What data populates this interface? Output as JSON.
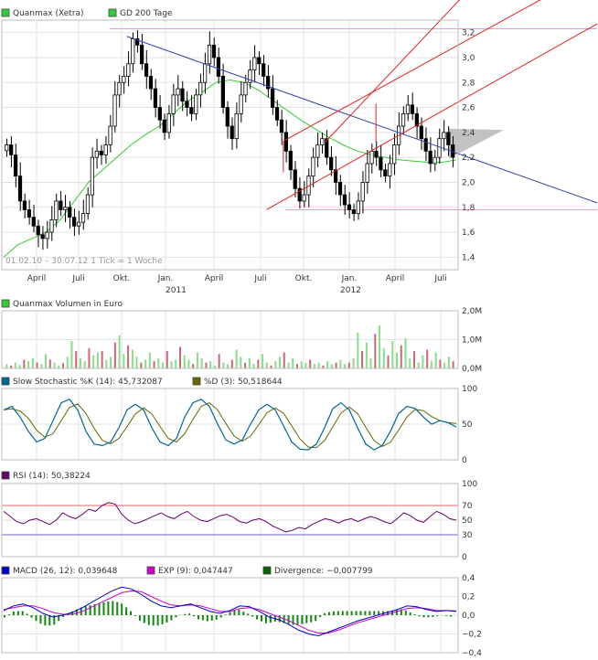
{
  "chart_data": [
    {
      "type": "candlestick",
      "legend": [
        {
          "label": "Quanmax (Xetra)",
          "color": "#33cc33"
        },
        {
          "label": "GD 200 Tage",
          "color": "#33cc33"
        }
      ],
      "y_ticks": [
        "3,2",
        "3,0",
        "2,8",
        "2,6",
        "2,4",
        "2,2",
        "2,0",
        "1,8",
        "1,6",
        "1,4"
      ],
      "y_values": [
        3.2,
        3.0,
        2.8,
        2.6,
        2.4,
        2.2,
        2.0,
        1.8,
        1.6,
        1.4
      ],
      "ylim": [
        1.3,
        3.3
      ],
      "x_ticks": [
        "April",
        "Juli",
        "Okt.",
        "Jan.",
        "April",
        "Juli",
        "Okt.",
        "Jan.",
        "April",
        "Juli"
      ],
      "year_labels": [
        {
          "label": "2011",
          "under": 3
        },
        {
          "label": "2012",
          "under": 7
        }
      ],
      "period_note": "01.02.10 – 30.07.12   1 Tick = 1 Woche",
      "closes": [
        2.3,
        2.22,
        2.05,
        1.85,
        1.78,
        1.72,
        1.65,
        1.58,
        1.55,
        1.6,
        1.7,
        1.85,
        1.78,
        1.8,
        1.72,
        1.65,
        1.68,
        1.75,
        1.9,
        2.2,
        2.25,
        2.22,
        2.3,
        2.45,
        2.7,
        2.8,
        2.85,
        2.95,
        3.15,
        3.1,
        2.95,
        2.85,
        2.75,
        2.6,
        2.5,
        2.4,
        2.55,
        2.7,
        2.75,
        2.65,
        2.6,
        2.55,
        2.7,
        2.8,
        2.95,
        3.1,
        3.0,
        2.85,
        2.6,
        2.45,
        2.35,
        2.55,
        2.7,
        2.8,
        2.9,
        3.0,
        2.95,
        2.85,
        2.75,
        2.6,
        2.5,
        2.4,
        2.25,
        2.1,
        1.95,
        1.85,
        1.9,
        2.05,
        2.2,
        2.3,
        2.35,
        2.2,
        2.1,
        2.0,
        1.9,
        1.82,
        1.78,
        1.75,
        1.85,
        2.0,
        2.15,
        2.25,
        2.2,
        2.1,
        2.05,
        2.15,
        2.3,
        2.45,
        2.55,
        2.62,
        2.55,
        2.45,
        2.35,
        2.25,
        2.15,
        2.2,
        2.35,
        2.4,
        2.3,
        2.2
      ],
      "ma200": [
        1.4,
        1.5,
        1.55,
        1.6,
        1.7,
        1.85,
        2.0,
        2.1,
        2.2,
        2.3,
        2.38,
        2.45,
        2.55,
        2.65,
        2.72,
        2.8,
        2.82,
        2.8,
        2.74,
        2.66,
        2.58,
        2.5,
        2.43,
        2.36,
        2.3,
        2.25,
        2.22,
        2.2,
        2.18,
        2.17,
        2.16,
        2.16,
        2.18
      ],
      "resistance_line": {
        "from": [
          0.274,
          3.17
        ],
        "to": [
          1.0,
          2.23
        ]
      },
      "channel_upper": {
        "from": [
          0.617,
          2.33
        ],
        "to": [
          1.0,
          3.1
        ]
      },
      "channel_lower": {
        "from": [
          0.58,
          1.78
        ],
        "to": [
          0.94,
          2.52
        ]
      },
      "channel_far": {
        "from": [
          0.708,
          2.32
        ],
        "to": [
          1.0,
          3.45
        ]
      },
      "support_level": 1.78,
      "top_level": 3.23
    },
    {
      "type": "bar",
      "legend": [
        {
          "label": "Quanmax Volumen in Euro",
          "color": "#33cc33"
        }
      ],
      "y_ticks": [
        "2,0M",
        "1,0M",
        "0,0M"
      ],
      "ylim": [
        0,
        2.0
      ],
      "values": [
        0.15,
        0.1,
        0.2,
        0.12,
        0.3,
        0.25,
        0.35,
        0.2,
        0.15,
        0.5,
        0.3,
        0.2,
        0.1,
        0.18,
        0.4,
        0.95,
        0.6,
        0.35,
        0.25,
        0.7,
        0.45,
        0.55,
        0.6,
        0.3,
        0.4,
        0.9,
        1.15,
        0.5,
        0.8,
        0.65,
        0.4,
        0.2,
        0.3,
        0.55,
        0.25,
        0.35,
        0.2,
        0.6,
        0.25,
        0.3,
        0.75,
        0.45,
        0.3,
        0.15,
        0.55,
        0.35,
        0.2,
        0.25,
        0.1,
        0.5,
        0.2,
        0.15,
        0.3,
        0.65,
        0.4,
        0.2,
        0.35,
        0.15,
        0.3,
        0.5,
        0.2,
        0.1,
        0.25,
        0.4,
        0.55,
        0.2,
        0.35,
        0.15,
        0.25,
        0.2,
        0.3,
        0.15,
        0.2,
        0.1,
        0.25,
        0.15,
        0.2,
        0.3,
        0.15,
        0.2,
        0.35,
        1.25,
        0.6,
        0.9,
        0.35,
        1.2,
        1.5,
        0.7,
        0.45,
        0.95,
        0.55,
        0.8,
        1.05,
        0.35,
        0.6,
        0.2,
        0.45,
        0.65,
        0.25,
        0.55,
        0.3,
        0.2,
        0.4,
        0.25
      ]
    },
    {
      "type": "line",
      "legend": [
        {
          "label": "Slow Stochastic %K (14): 45,732087",
          "color": "#006699"
        },
        {
          "label": "%D (3): 50,518644",
          "color": "#666600"
        }
      ],
      "y_ticks": [
        "100",
        "50",
        "0"
      ],
      "ylim": [
        0,
        100
      ],
      "k_values": [
        70,
        75,
        60,
        40,
        25,
        30,
        55,
        80,
        85,
        70,
        40,
        22,
        20,
        25,
        45,
        70,
        78,
        70,
        45,
        25,
        20,
        30,
        60,
        80,
        85,
        75,
        50,
        28,
        22,
        28,
        50,
        70,
        78,
        70,
        48,
        25,
        15,
        14,
        22,
        45,
        72,
        80,
        70,
        45,
        22,
        14,
        20,
        40,
        65,
        75,
        72,
        60,
        50,
        55,
        52,
        46
      ]
    },
    {
      "type": "line",
      "legend": [
        {
          "label": "RSI (14): 50,38224",
          "color": "#660066"
        }
      ],
      "y_ticks": [
        "100",
        "70",
        "50",
        "30",
        "0"
      ],
      "ylim": [
        0,
        100
      ],
      "ref_lines": [
        70,
        30
      ],
      "values": [
        62,
        55,
        48,
        45,
        50,
        52,
        48,
        44,
        50,
        60,
        55,
        52,
        58,
        65,
        62,
        70,
        74,
        72,
        58,
        50,
        45,
        48,
        52,
        56,
        60,
        55,
        52,
        58,
        62,
        55,
        50,
        48,
        52,
        56,
        58,
        54,
        48,
        46,
        50,
        52,
        48,
        42,
        38,
        34,
        36,
        40,
        38,
        44,
        48,
        52,
        50,
        46,
        50,
        52,
        48,
        52,
        55,
        52,
        48,
        45,
        52,
        60,
        56,
        50,
        47,
        55,
        62,
        58,
        52,
        50
      ]
    },
    {
      "type": "line",
      "legend": [
        {
          "label": "MACD (26, 12): 0,039648",
          "color": "#0000cc"
        },
        {
          "label": "EXP (9): 0,047447",
          "color": "#cc00cc"
        },
        {
          "label": "Divergence: −0,007799",
          "color": "#006600"
        }
      ],
      "y_ticks": [
        "0,4",
        "0,2",
        "0,0",
        "−0,2",
        "−0,4"
      ],
      "ylim": [
        -0.4,
        0.4
      ],
      "macd": [
        0.05,
        0.1,
        0.12,
        0.08,
        0.02,
        -0.02,
        0.0,
        0.03,
        0.08,
        0.14,
        0.2,
        0.26,
        0.3,
        0.28,
        0.22,
        0.15,
        0.1,
        0.08,
        0.1,
        0.12,
        0.08,
        0.04,
        0.02,
        0.05,
        0.1,
        0.09,
        0.04,
        -0.02,
        -0.05,
        -0.1,
        -0.16,
        -0.2,
        -0.22,
        -0.18,
        -0.14,
        -0.1,
        -0.06,
        -0.03,
        0.0,
        0.03,
        0.06,
        0.1,
        0.09,
        0.06,
        0.04,
        0.05,
        0.04
      ],
      "signal": [
        0.06,
        0.08,
        0.1,
        0.1,
        0.07,
        0.03,
        0.01,
        0.01,
        0.04,
        0.09,
        0.14,
        0.19,
        0.24,
        0.26,
        0.25,
        0.2,
        0.15,
        0.11,
        0.1,
        0.11,
        0.1,
        0.07,
        0.04,
        0.04,
        0.07,
        0.08,
        0.06,
        0.02,
        -0.02,
        -0.06,
        -0.11,
        -0.16,
        -0.19,
        -0.19,
        -0.16,
        -0.12,
        -0.08,
        -0.05,
        -0.02,
        0.01,
        0.04,
        0.07,
        0.08,
        0.07,
        0.05,
        0.05,
        0.047
      ]
    }
  ]
}
